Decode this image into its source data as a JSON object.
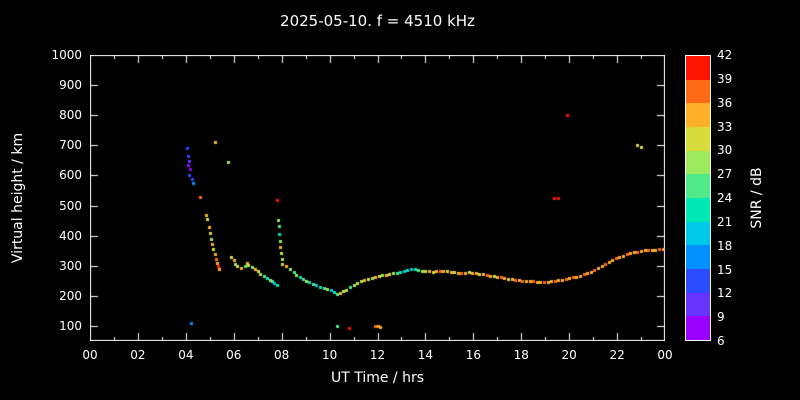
{
  "title": "2025-05-10. f = 4510 kHz",
  "style": {
    "background": "#000000",
    "foreground": "#ffffff",
    "frame": "#ffffff"
  },
  "axes": {
    "x": {
      "label": "UT Time / hrs",
      "min": 0,
      "max": 24,
      "tick_values": [
        0,
        2,
        4,
        6,
        8,
        10,
        12,
        14,
        16,
        18,
        20,
        22,
        24
      ],
      "tick_labels": [
        "00",
        "02",
        "04",
        "06",
        "08",
        "10",
        "12",
        "14",
        "16",
        "18",
        "20",
        "22",
        "00"
      ]
    },
    "y": {
      "label": "Virtual height / km",
      "min": 50,
      "max": 1000,
      "tick_values": [
        100,
        200,
        300,
        400,
        500,
        600,
        700,
        800,
        900,
        1000
      ],
      "tick_labels": [
        "100",
        "200",
        "300",
        "400",
        "500",
        "600",
        "700",
        "800",
        "900",
        "1000"
      ]
    }
  },
  "colorbar": {
    "label": "SNR / dB",
    "min": 6,
    "max": 42,
    "ticks": [
      6,
      9,
      12,
      15,
      18,
      21,
      24,
      27,
      30,
      33,
      36,
      39,
      42
    ],
    "colors": [
      "#9900ff",
      "#6633ff",
      "#2b4bff",
      "#0090ff",
      "#00c8e8",
      "#00e8b4",
      "#4fe98a",
      "#9dea5e",
      "#d8dc3a",
      "#ffb028",
      "#ff6a14",
      "#ff1400"
    ]
  },
  "chart_data": {
    "type": "scatter",
    "title": "2025-05-10. f = 4510 kHz",
    "xlabel": "UT Time / hrs",
    "ylabel": "Virtual height / km",
    "zlabel": "SNR / dB",
    "xlim": [
      0,
      24
    ],
    "ylim": [
      50,
      1000
    ],
    "zlim": [
      6,
      42
    ],
    "grid": false,
    "points_format": "[ut_hours, virtual_height_km, snr_db]",
    "points": [
      [
        4.05,
        690,
        12
      ],
      [
        4.1,
        665,
        12
      ],
      [
        4.12,
        648,
        9
      ],
      [
        4.08,
        635,
        7
      ],
      [
        4.18,
        622,
        8
      ],
      [
        4.15,
        600,
        12
      ],
      [
        4.25,
        588,
        12
      ],
      [
        4.3,
        575,
        15
      ],
      [
        4.2,
        110,
        17
      ],
      [
        4.6,
        528,
        36
      ],
      [
        4.85,
        470,
        33
      ],
      [
        4.9,
        455,
        30
      ],
      [
        4.95,
        430,
        33
      ],
      [
        5.0,
        410,
        30
      ],
      [
        5.05,
        390,
        27
      ],
      [
        5.1,
        372,
        33
      ],
      [
        5.15,
        355,
        30
      ],
      [
        5.2,
        340,
        33
      ],
      [
        5.25,
        322,
        36
      ],
      [
        5.3,
        308,
        33
      ],
      [
        5.35,
        298,
        39
      ],
      [
        5.4,
        290,
        33
      ],
      [
        5.2,
        710,
        33
      ],
      [
        5.75,
        645,
        27
      ],
      [
        5.9,
        330,
        30
      ],
      [
        6.0,
        318,
        33
      ],
      [
        6.05,
        305,
        27
      ],
      [
        6.15,
        298,
        30
      ],
      [
        6.3,
        292,
        33
      ],
      [
        6.45,
        300,
        24
      ],
      [
        6.55,
        308,
        33
      ],
      [
        6.6,
        302,
        30
      ],
      [
        6.75,
        295,
        27
      ],
      [
        6.9,
        288,
        33
      ],
      [
        7.0,
        282,
        30
      ],
      [
        7.1,
        272,
        27
      ],
      [
        7.25,
        265,
        24
      ],
      [
        7.4,
        258,
        21
      ],
      [
        7.5,
        252,
        27
      ],
      [
        7.6,
        248,
        24
      ],
      [
        7.7,
        242,
        18
      ],
      [
        7.8,
        235,
        21
      ],
      [
        7.8,
        520,
        39
      ],
      [
        7.85,
        452,
        27
      ],
      [
        7.88,
        432,
        24
      ],
      [
        7.9,
        405,
        21
      ],
      [
        7.92,
        382,
        27
      ],
      [
        7.95,
        362,
        33
      ],
      [
        7.98,
        342,
        30
      ],
      [
        8.0,
        322,
        27
      ],
      [
        8.02,
        305,
        30
      ],
      [
        8.2,
        298,
        33
      ],
      [
        8.35,
        288,
        27
      ],
      [
        8.5,
        278,
        24
      ],
      [
        8.6,
        268,
        27
      ],
      [
        8.75,
        262,
        21
      ],
      [
        8.9,
        255,
        24
      ],
      [
        9.0,
        250,
        27
      ],
      [
        9.15,
        245,
        21
      ],
      [
        9.3,
        240,
        24
      ],
      [
        9.45,
        235,
        18
      ],
      [
        9.6,
        230,
        21
      ],
      [
        9.75,
        226,
        24
      ],
      [
        9.9,
        222,
        27
      ],
      [
        10.05,
        218,
        18
      ],
      [
        10.2,
        212,
        21
      ],
      [
        10.3,
        205,
        24
      ],
      [
        10.45,
        210,
        33
      ],
      [
        10.55,
        215,
        27
      ],
      [
        10.7,
        220,
        30
      ],
      [
        10.85,
        228,
        24
      ],
      [
        11.0,
        235,
        27
      ],
      [
        11.15,
        242,
        30
      ],
      [
        11.3,
        248,
        27
      ],
      [
        10.3,
        100,
        24
      ],
      [
        10.8,
        92,
        39
      ],
      [
        11.9,
        100,
        36
      ],
      [
        12.0,
        100,
        33
      ],
      [
        12.1,
        98,
        33
      ],
      [
        11.45,
        252,
        33
      ],
      [
        11.6,
        256,
        30
      ],
      [
        11.75,
        260,
        27
      ],
      [
        11.9,
        263,
        33
      ],
      [
        12.05,
        266,
        30
      ],
      [
        12.2,
        268,
        27
      ],
      [
        12.35,
        270,
        33
      ],
      [
        12.5,
        272,
        30
      ],
      [
        12.65,
        275,
        27
      ],
      [
        12.8,
        277,
        24
      ],
      [
        12.95,
        280,
        21
      ],
      [
        13.1,
        283,
        18
      ],
      [
        13.25,
        286,
        21
      ],
      [
        13.4,
        290,
        18
      ],
      [
        13.55,
        288,
        21
      ],
      [
        13.7,
        285,
        24
      ],
      [
        13.85,
        283,
        27
      ],
      [
        14.0,
        284,
        30
      ],
      [
        14.15,
        282,
        33
      ],
      [
        14.3,
        280,
        30
      ],
      [
        14.45,
        282,
        33
      ],
      [
        14.6,
        284,
        36
      ],
      [
        14.75,
        283,
        33
      ],
      [
        14.9,
        281,
        30
      ],
      [
        15.05,
        280,
        33
      ],
      [
        15.2,
        278,
        30
      ],
      [
        15.35,
        277,
        33
      ],
      [
        15.5,
        276,
        36
      ],
      [
        15.65,
        277,
        33
      ],
      [
        15.8,
        278,
        30
      ],
      [
        15.95,
        277,
        33
      ],
      [
        16.1,
        275,
        33
      ],
      [
        16.25,
        273,
        30
      ],
      [
        16.4,
        271,
        33
      ],
      [
        16.55,
        269,
        36
      ],
      [
        16.7,
        267,
        33
      ],
      [
        16.85,
        265,
        30
      ],
      [
        17.0,
        263,
        33
      ],
      [
        17.15,
        261,
        36
      ],
      [
        17.3,
        259,
        33
      ],
      [
        17.45,
        257,
        30
      ],
      [
        17.6,
        255,
        33
      ],
      [
        17.75,
        253,
        36
      ],
      [
        17.9,
        251,
        33
      ],
      [
        18.05,
        250,
        36
      ],
      [
        18.2,
        249,
        33
      ],
      [
        18.35,
        248,
        33
      ],
      [
        18.5,
        248,
        36
      ],
      [
        18.65,
        247,
        33
      ],
      [
        18.8,
        246,
        33
      ],
      [
        18.95,
        246,
        36
      ],
      [
        19.1,
        247,
        33
      ],
      [
        19.25,
        248,
        33
      ],
      [
        19.4,
        250,
        36
      ],
      [
        19.55,
        252,
        33
      ],
      [
        19.7,
        254,
        33
      ],
      [
        19.85,
        256,
        36
      ],
      [
        19.35,
        525,
        40
      ],
      [
        19.55,
        525,
        40
      ],
      [
        19.9,
        800,
        40
      ],
      [
        20.0,
        258,
        33
      ],
      [
        20.15,
        261,
        36
      ],
      [
        20.3,
        264,
        33
      ],
      [
        20.45,
        267,
        33
      ],
      [
        20.6,
        271,
        36
      ],
      [
        20.75,
        275,
        33
      ],
      [
        20.9,
        280,
        33
      ],
      [
        21.05,
        286,
        36
      ],
      [
        21.2,
        292,
        33
      ],
      [
        21.35,
        299,
        33
      ],
      [
        21.5,
        306,
        36
      ],
      [
        21.65,
        313,
        33
      ],
      [
        21.8,
        319,
        33
      ],
      [
        21.95,
        325,
        36
      ],
      [
        22.1,
        330,
        33
      ],
      [
        22.25,
        334,
        33
      ],
      [
        22.4,
        338,
        36
      ],
      [
        22.55,
        341,
        33
      ],
      [
        22.7,
        344,
        33
      ],
      [
        22.85,
        347,
        36
      ],
      [
        23.0,
        349,
        33
      ],
      [
        23.15,
        351,
        33
      ],
      [
        23.3,
        352,
        36
      ],
      [
        23.45,
        351,
        33
      ],
      [
        23.6,
        352,
        33
      ],
      [
        23.75,
        354,
        36
      ],
      [
        23.9,
        356,
        33
      ],
      [
        22.85,
        702,
        30
      ],
      [
        23.0,
        696,
        30
      ]
    ]
  }
}
